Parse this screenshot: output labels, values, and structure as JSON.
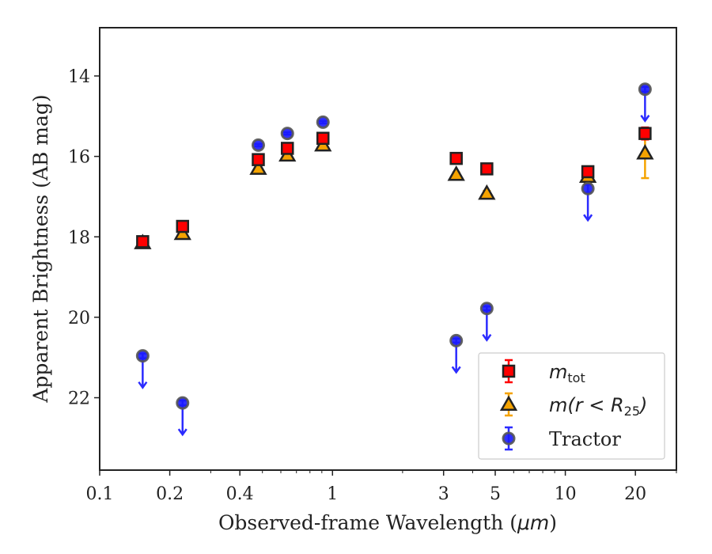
{
  "chart_data": {
    "type": "scatter",
    "xscale": "log",
    "xlim": [
      0.1,
      30
    ],
    "ylim": [
      23.8,
      12.8
    ],
    "y_inverted": true,
    "xlabel": "Observed-frame Wavelength (",
    "xlabel_unit": "μm",
    "xlabel_close": ")",
    "ylabel": "Apparent Brightness (AB mag)",
    "xticks": [
      0.1,
      0.2,
      0.4,
      1,
      3,
      5,
      10,
      20
    ],
    "xtick_labels": [
      "0.1",
      "0.2",
      "0.4",
      "1",
      "3",
      "5",
      "10",
      "20"
    ],
    "yticks": [
      14,
      16,
      18,
      20,
      22
    ],
    "ytick_labels": [
      "14",
      "16",
      "18",
      "20",
      "22"
    ],
    "legend_position": "lower-right",
    "series": [
      {
        "name": "m_tot",
        "legend_main": "m",
        "legend_sub": "tot",
        "marker": "square",
        "color": "#ff0000",
        "errcolor": "#ff0000",
        "x": [
          0.153,
          0.227,
          0.48,
          0.64,
          0.91,
          3.4,
          4.6,
          12.5,
          22
        ],
        "y": [
          18.12,
          17.74,
          16.08,
          15.8,
          15.55,
          16.05,
          16.31,
          16.38,
          15.43
        ],
        "yerr": [
          0.08,
          0.08,
          0.04,
          0.04,
          0.04,
          0.04,
          0.05,
          0.12,
          0.15
        ]
      },
      {
        "name": "m(r < R25)",
        "legend_main": "m(r < R",
        "legend_sub": "25",
        "legend_tail": ")",
        "marker": "triangle",
        "color": "#f5a300",
        "errcolor": "#f5a300",
        "x": [
          0.153,
          0.227,
          0.48,
          0.64,
          0.91,
          3.4,
          4.6,
          12.5,
          22
        ],
        "y": [
          18.15,
          17.92,
          16.3,
          15.97,
          15.72,
          16.45,
          16.92,
          16.5,
          15.92
        ],
        "yerr": [
          0.08,
          0.08,
          0.04,
          0.04,
          0.04,
          0.05,
          0.06,
          0.15,
          0.62
        ]
      },
      {
        "name": "Tractor",
        "legend_main": "Tractor",
        "marker": "circle",
        "color": "#1a1aff",
        "errcolor": "#2b2bff",
        "x": [
          0.153,
          0.227,
          0.48,
          0.64,
          0.91,
          3.4,
          4.6,
          12.5,
          22
        ],
        "y": [
          20.96,
          22.13,
          15.72,
          15.43,
          15.15,
          20.58,
          19.78,
          16.8,
          14.33
        ],
        "yerr": [
          0.06,
          0.06,
          0.03,
          0.03,
          0.03,
          0.05,
          0.05,
          0.1,
          0.06
        ],
        "upper_limits": [
          true,
          true,
          false,
          false,
          false,
          true,
          true,
          true,
          true
        ]
      }
    ]
  }
}
